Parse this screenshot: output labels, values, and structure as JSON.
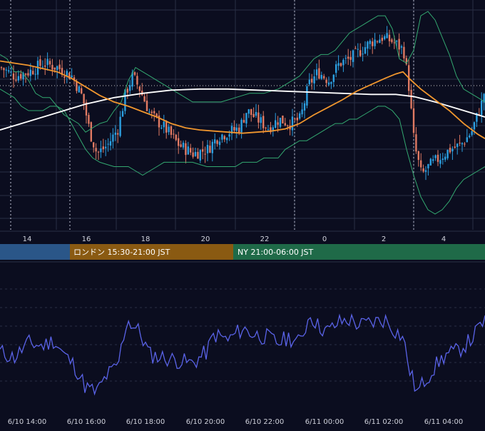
{
  "colors": {
    "background": "#0b0d1f",
    "grid": "#2a2e44",
    "candle_up": "#2b9fe0",
    "candle_down": "#e07a63",
    "bollinger": "#33a870",
    "ma_orange": "#f0962e",
    "ma_white": "#ffffff",
    "oscillator": "#5a63e8",
    "session_tokyo": "#2a5688",
    "session_london": "#8a5a12",
    "session_ny": "#1f6a48",
    "axis_text": "#d0d2dc"
  },
  "chart_data": [
    {
      "type": "candlestick",
      "x_tick_labels": [
        "14",
        "16",
        "18",
        "20",
        "22",
        "0",
        "2",
        "4"
      ],
      "ylim": [
        0,
        100
      ],
      "grid": true,
      "overlays": [
        "Bollinger Bands",
        "Moving Average (orange)",
        "Moving Average (white)"
      ],
      "upper_band": [
        [
          0,
          78
        ],
        [
          10,
          76
        ],
        [
          20,
          70
        ],
        [
          30,
          70
        ],
        [
          40,
          66
        ],
        [
          50,
          60
        ],
        [
          60,
          58
        ],
        [
          70,
          58
        ],
        [
          80,
          54
        ],
        [
          90,
          50
        ],
        [
          100,
          48
        ],
        [
          110,
          46
        ],
        [
          120,
          42
        ],
        [
          130,
          44
        ],
        [
          140,
          46
        ],
        [
          150,
          47
        ],
        [
          160,
          52
        ],
        [
          170,
          56
        ],
        [
          180,
          66
        ],
        [
          190,
          72
        ],
        [
          200,
          70
        ],
        [
          210,
          68
        ],
        [
          220,
          66
        ],
        [
          230,
          64
        ],
        [
          240,
          62
        ],
        [
          250,
          60
        ],
        [
          260,
          58
        ],
        [
          270,
          56
        ],
        [
          280,
          56
        ],
        [
          290,
          56
        ],
        [
          300,
          56
        ],
        [
          310,
          56
        ],
        [
          320,
          57
        ],
        [
          330,
          58
        ],
        [
          340,
          59
        ],
        [
          350,
          60
        ],
        [
          360,
          60
        ],
        [
          370,
          60
        ],
        [
          380,
          61
        ],
        [
          390,
          62
        ],
        [
          400,
          64
        ],
        [
          410,
          66
        ],
        [
          420,
          68
        ],
        [
          430,
          72
        ],
        [
          440,
          76
        ],
        [
          450,
          78
        ],
        [
          460,
          78
        ],
        [
          470,
          80
        ],
        [
          480,
          84
        ],
        [
          490,
          88
        ],
        [
          500,
          90
        ],
        [
          510,
          92
        ],
        [
          520,
          94
        ],
        [
          530,
          96
        ],
        [
          540,
          96
        ],
        [
          550,
          90
        ],
        [
          560,
          76
        ],
        [
          570,
          74
        ],
        [
          580,
          80
        ],
        [
          590,
          96
        ],
        [
          600,
          98
        ],
        [
          610,
          94
        ],
        [
          620,
          86
        ],
        [
          630,
          78
        ],
        [
          640,
          68
        ],
        [
          650,
          62
        ],
        [
          660,
          60
        ],
        [
          670,
          58
        ],
        [
          680,
          56
        ]
      ],
      "ma_orange": [
        [
          0,
          75
        ],
        [
          20,
          74
        ],
        [
          40,
          73
        ],
        [
          60,
          71.5
        ],
        [
          80,
          70
        ],
        [
          100,
          67
        ],
        [
          120,
          63
        ],
        [
          140,
          59
        ],
        [
          160,
          56
        ],
        [
          180,
          54
        ],
        [
          200,
          51.5
        ],
        [
          220,
          49
        ],
        [
          240,
          46
        ],
        [
          260,
          44
        ],
        [
          280,
          43
        ],
        [
          300,
          42.5
        ],
        [
          320,
          42
        ],
        [
          340,
          41.5
        ],
        [
          360,
          42
        ],
        [
          380,
          42.5
        ],
        [
          400,
          43.5
        ],
        [
          420,
          46
        ],
        [
          440,
          50
        ],
        [
          460,
          53.5
        ],
        [
          480,
          57
        ],
        [
          500,
          61
        ],
        [
          520,
          64
        ],
        [
          540,
          67
        ],
        [
          555,
          69
        ],
        [
          565,
          70
        ],
        [
          575,
          66.5
        ],
        [
          590,
          62
        ],
        [
          610,
          57
        ],
        [
          630,
          52
        ],
        [
          650,
          46
        ],
        [
          670,
          41
        ],
        [
          680,
          39
        ]
      ],
      "ma_white": [
        [
          0,
          43
        ],
        [
          40,
          47
        ],
        [
          80,
          51
        ],
        [
          120,
          55
        ],
        [
          160,
          58
        ],
        [
          200,
          60
        ],
        [
          240,
          61.5
        ],
        [
          280,
          62
        ],
        [
          320,
          62
        ],
        [
          360,
          61.5
        ],
        [
          400,
          61
        ],
        [
          440,
          60.5
        ],
        [
          480,
          60
        ],
        [
          520,
          59.5
        ],
        [
          555,
          59.5
        ],
        [
          580,
          58.5
        ],
        [
          610,
          56
        ],
        [
          640,
          53
        ],
        [
          680,
          49
        ]
      ],
      "lower_band": [
        [
          0,
          62
        ],
        [
          10,
          60
        ],
        [
          20,
          58
        ],
        [
          30,
          54
        ],
        [
          40,
          52
        ],
        [
          50,
          52
        ],
        [
          60,
          52
        ],
        [
          70,
          54
        ],
        [
          80,
          54
        ],
        [
          90,
          52
        ],
        [
          100,
          46
        ],
        [
          110,
          40
        ],
        [
          120,
          34
        ],
        [
          130,
          30
        ],
        [
          140,
          28
        ],
        [
          150,
          27
        ],
        [
          160,
          26
        ],
        [
          170,
          26
        ],
        [
          180,
          26
        ],
        [
          190,
          24
        ],
        [
          200,
          22
        ],
        [
          210,
          24
        ],
        [
          220,
          26
        ],
        [
          230,
          28
        ],
        [
          240,
          28
        ],
        [
          250,
          28
        ],
        [
          260,
          28
        ],
        [
          270,
          28
        ],
        [
          280,
          27
        ],
        [
          290,
          26
        ],
        [
          300,
          26
        ],
        [
          310,
          26
        ],
        [
          320,
          26
        ],
        [
          330,
          26
        ],
        [
          340,
          28
        ],
        [
          350,
          28
        ],
        [
          360,
          28
        ],
        [
          370,
          30
        ],
        [
          380,
          30
        ],
        [
          390,
          30
        ],
        [
          400,
          34
        ],
        [
          410,
          36
        ],
        [
          420,
          38
        ],
        [
          430,
          38
        ],
        [
          440,
          40
        ],
        [
          450,
          42
        ],
        [
          460,
          44
        ],
        [
          470,
          46
        ],
        [
          480,
          46
        ],
        [
          490,
          48
        ],
        [
          500,
          48
        ],
        [
          510,
          50
        ],
        [
          520,
          52
        ],
        [
          530,
          54
        ],
        [
          540,
          54
        ],
        [
          550,
          52
        ],
        [
          560,
          48
        ],
        [
          570,
          34
        ],
        [
          580,
          22
        ],
        [
          590,
          12
        ],
        [
          600,
          6
        ],
        [
          610,
          4
        ],
        [
          620,
          6
        ],
        [
          630,
          10
        ],
        [
          640,
          16
        ],
        [
          650,
          20
        ],
        [
          660,
          22
        ],
        [
          670,
          24
        ],
        [
          680,
          26
        ]
      ]
    },
    {
      "type": "line",
      "series_name": "oscillator",
      "x_tick_labels": [
        "6/10 14:00",
        "6/10 16:00",
        "6/10 18:00",
        "6/10 20:00",
        "6/10 22:00",
        "6/11 00:00",
        "6/11 02:00",
        "6/11 04:00"
      ],
      "ylim": [
        0,
        100
      ],
      "grid": true
    }
  ],
  "sessions": [
    {
      "label": ""
    },
    {
      "label": "ロンドン 15:30-21:00 JST"
    },
    {
      "label": "NY 21:00-06:00 JST"
    }
  ]
}
